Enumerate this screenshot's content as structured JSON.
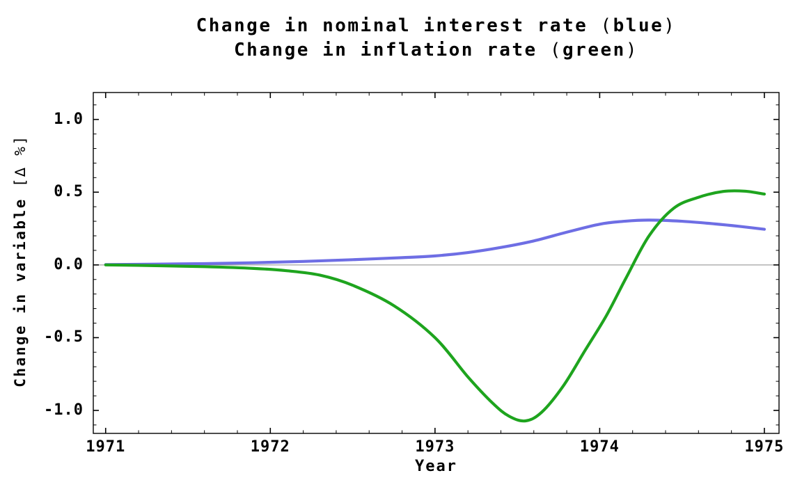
{
  "title": {
    "lines": [
      {
        "main": "Change in nominal interest rate",
        "paren_open": "(",
        "paren_word": "blue",
        "paren_close": ")"
      },
      {
        "main": "Change in inflation rate",
        "paren_open": "(",
        "paren_word": "green",
        "paren_close": ")"
      }
    ]
  },
  "x_axis": {
    "label": "Year"
  },
  "y_axis": {
    "label_main": "Change in variable",
    "label_unit": "[∆ %]"
  },
  "colors": {
    "nominal_interest_line": "#6e6ee4",
    "inflation_line": "#1ea41e",
    "frame": "#000000",
    "zero_line": "#8a8a8a",
    "background": "#ffffff"
  },
  "chart_data": {
    "type": "line",
    "title": "Change in nominal interest rate (blue) / Change in inflation rate (green)",
    "xlabel": "Year",
    "ylabel": "Change in variable [∆ %]",
    "xlim": [
      1970.925,
      1975.089
    ],
    "ylim": [
      -1.158,
      1.185
    ],
    "x_ticks": [
      1971,
      1972,
      1973,
      1974,
      1975
    ],
    "x_tick_labels": [
      "1971",
      "1972",
      "1973",
      "1974",
      "1975"
    ],
    "x_minor_step": 0.2,
    "y_ticks": [
      1.0,
      0.5,
      0.0,
      -0.5,
      -1.0
    ],
    "y_tick_labels": [
      "1.0",
      "0.5",
      "0.0",
      "-0.5",
      "-1.0"
    ],
    "y_minor_step": 0.1,
    "grid": false,
    "zero_line": true,
    "legend": "encoded in title (blue / green)",
    "series": [
      {
        "name": "Change in nominal interest rate",
        "color_key": "nominal_interest_line",
        "points": [
          [
            1971.0,
            0.002
          ],
          [
            1971.3,
            0.005
          ],
          [
            1971.6,
            0.009
          ],
          [
            1971.9,
            0.015
          ],
          [
            1972.2,
            0.024
          ],
          [
            1972.5,
            0.036
          ],
          [
            1972.8,
            0.05
          ],
          [
            1973.0,
            0.062
          ],
          [
            1973.2,
            0.085
          ],
          [
            1973.4,
            0.12
          ],
          [
            1973.6,
            0.165
          ],
          [
            1973.8,
            0.225
          ],
          [
            1974.0,
            0.28
          ],
          [
            1974.15,
            0.3
          ],
          [
            1974.3,
            0.308
          ],
          [
            1974.5,
            0.3
          ],
          [
            1974.7,
            0.282
          ],
          [
            1974.85,
            0.265
          ],
          [
            1975.0,
            0.245
          ]
        ]
      },
      {
        "name": "Change in inflation rate",
        "color_key": "inflation_line",
        "points": [
          [
            1971.0,
            0.0
          ],
          [
            1971.3,
            -0.005
          ],
          [
            1971.6,
            -0.012
          ],
          [
            1971.9,
            -0.024
          ],
          [
            1972.1,
            -0.04
          ],
          [
            1972.3,
            -0.07
          ],
          [
            1972.5,
            -0.14
          ],
          [
            1972.75,
            -0.28
          ],
          [
            1973.0,
            -0.5
          ],
          [
            1973.2,
            -0.77
          ],
          [
            1973.35,
            -0.95
          ],
          [
            1973.45,
            -1.04
          ],
          [
            1973.55,
            -1.072
          ],
          [
            1973.65,
            -1.01
          ],
          [
            1973.78,
            -0.83
          ],
          [
            1973.91,
            -0.59
          ],
          [
            1974.04,
            -0.35
          ],
          [
            1974.16,
            -0.09
          ],
          [
            1974.3,
            0.2
          ],
          [
            1974.45,
            0.39
          ],
          [
            1974.6,
            0.465
          ],
          [
            1974.75,
            0.505
          ],
          [
            1974.88,
            0.507
          ],
          [
            1975.0,
            0.487
          ]
        ]
      }
    ]
  }
}
